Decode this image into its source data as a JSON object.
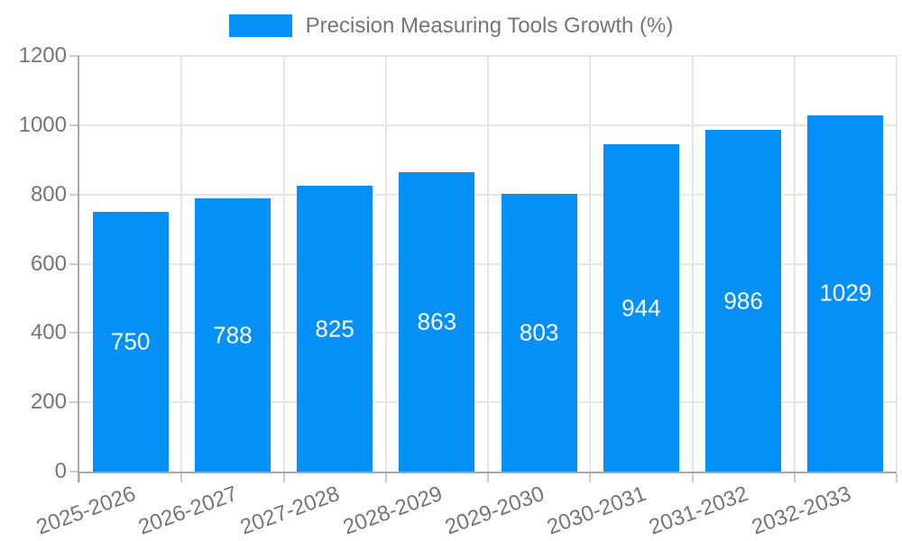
{
  "chart_data": {
    "type": "bar",
    "title": "Precision Measuring Tools Growth (%)",
    "legend": {
      "position": "top",
      "label": "Precision Measuring Tools Growth (%)"
    },
    "categories": [
      "2025-2026",
      "2026-2027",
      "2027-2028",
      "2028-2029",
      "2029-2030",
      "2030-2031",
      "2031-2032",
      "2032-2033"
    ],
    "values": [
      750,
      788,
      825,
      863,
      803,
      944,
      986,
      1029
    ],
    "value_labels": [
      "750",
      "788",
      "825",
      "863",
      "803",
      "944",
      "986",
      "1029"
    ],
    "xlabel": "",
    "ylabel": "",
    "ylim": [
      0,
      1200
    ],
    "yticks": [
      0,
      200,
      400,
      600,
      800,
      1000,
      1200
    ],
    "x_label_rotation_deg": -20,
    "grid": true,
    "colors": {
      "bar": "#0590f8",
      "grid": "#e6e6e6",
      "axis": "#a8a8a8",
      "tick": "#cccccc",
      "tick_label": "#757575",
      "value_label": "#ffffff",
      "background": "#ffffff"
    }
  }
}
